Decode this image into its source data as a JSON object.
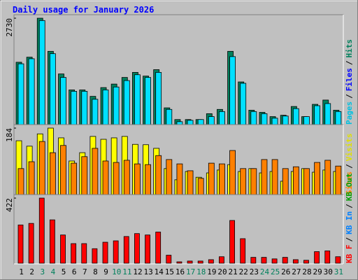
{
  "chart_data": {
    "type": "bar",
    "title": "Daily usage for January 2026",
    "categories": [
      "1",
      "2",
      "3",
      "4",
      "5",
      "6",
      "7",
      "8",
      "9",
      "10",
      "11",
      "12",
      "13",
      "14",
      "15",
      "16",
      "17",
      "18",
      "19",
      "20",
      "21",
      "22",
      "23",
      "24",
      "25",
      "26",
      "27",
      "28",
      "29",
      "30",
      "31"
    ],
    "category_colors": [
      "#000000",
      "#000000",
      "#00805c",
      "#00805c",
      "#000000",
      "#000000",
      "#000000",
      "#000000",
      "#000000",
      "#00805c",
      "#00805c",
      "#000000",
      "#000000",
      "#000000",
      "#000000",
      "#000000",
      "#00805c",
      "#00805c",
      "#000000",
      "#000000",
      "#000000",
      "#000000",
      "#000000",
      "#00805c",
      "#00805c",
      "#000000",
      "#000000",
      "#000000",
      "#000000",
      "#000000",
      "#00805c"
    ],
    "legend_separator": "/",
    "panels": [
      {
        "ylim": [
          0,
          2730
        ],
        "yticks": [
          2730
        ],
        "legend": [
          {
            "label": "Pages",
            "color": "#00c0e0"
          },
          {
            "label": "Files",
            "color": "#0000ff"
          },
          {
            "label": "Hits",
            "color": "#00805c"
          }
        ],
        "series": [
          {
            "name": "Hits",
            "color": "#00805c",
            "values": [
              1600,
              1730,
              2730,
              1880,
              1300,
              890,
              890,
              725,
              950,
              1040,
              1210,
              1340,
              1245,
              1410,
              430,
              130,
              130,
              130,
              280,
              390,
              1880,
              1095,
              370,
              315,
              205,
              240,
              465,
              205,
              520,
              630,
              370
            ]
          },
          {
            "name": "Pages",
            "color": "#00e0ff",
            "values": [
              1560,
              1690,
              2670,
              1820,
              1210,
              855,
              855,
              650,
              890,
              965,
              1130,
              1280,
              1210,
              1340,
              390,
              75,
              110,
              130,
              205,
              335,
              1745,
              1060,
              335,
              280,
              165,
              220,
              410,
              205,
              485,
              540,
              335
            ]
          }
        ]
      },
      {
        "ylim": [
          0,
          184
        ],
        "yticks": [
          184
        ],
        "legend": [
          {
            "label": "Sites",
            "color": "#ff8000"
          },
          {
            "label": "Visits",
            "color": "#e0e000"
          }
        ],
        "series": [
          {
            "name": "Visits",
            "color": "#ffff00",
            "values": [
              149,
              134,
              168,
              184,
              157,
              93,
              116,
              161,
              153,
              157,
              161,
              139,
              138,
              128,
              72,
              41,
              64,
              48,
              60,
              68,
              83,
              64,
              72,
              60,
              64,
              37,
              64,
              72,
              62,
              68,
              64
            ]
          },
          {
            "name": "Sites",
            "color": "#ff8000",
            "values": [
              72,
              91,
              147,
              116,
              136,
              87,
              105,
              128,
              93,
              89,
              95,
              85,
              83,
              108,
              97,
              85,
              66,
              45,
              87,
              85,
              122,
              72,
              72,
              97,
              97,
              72,
              77,
              72,
              89,
              95,
              79
            ]
          }
        ]
      },
      {
        "ylim": [
          0,
          422
        ],
        "yticks": [
          422
        ],
        "legend": [
          {
            "label": "KB F",
            "color": "#ff0000"
          },
          {
            "label": "KB In",
            "color": "#0080ff"
          },
          {
            "label": "KB Out",
            "color": "#00a000"
          }
        ],
        "series": [
          {
            "name": "KB F",
            "color": "#ff0000",
            "values": [
              248,
              258,
              422,
              281,
              183,
              127,
              127,
              94,
              136,
              145,
              173,
              192,
              183,
              202,
              52,
              9,
              14,
              14,
              23,
              42,
              277,
              159,
              38,
              38,
              28,
              38,
              23,
              19,
              75,
              80,
              42
            ]
          }
        ]
      }
    ]
  }
}
